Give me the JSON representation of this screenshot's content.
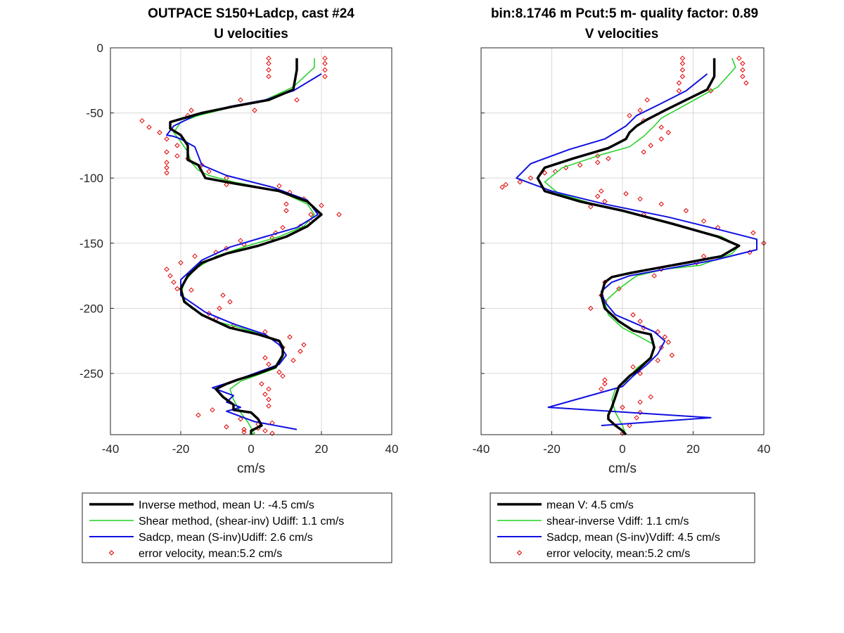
{
  "chart_data": [
    {
      "type": "line",
      "title_line1": "OUTPACE S150+Ladcp, cast #24",
      "title_line2": "U velocities",
      "xlabel": "cm/s",
      "ylabel": "",
      "xlim": [
        -40,
        40
      ],
      "ylim": [
        -297,
        0
      ],
      "y_reversed": false,
      "xticks": [
        -40,
        -20,
        0,
        20,
        40
      ],
      "yticks": [
        0,
        -50,
        -100,
        -150,
        -200,
        -250
      ],
      "ytick_labels": [
        "0",
        "-50",
        "-100",
        "-150",
        "-200",
        "-250"
      ],
      "xtick_labels": [
        "-40",
        "-20",
        "0",
        "20",
        "40"
      ],
      "grid": true,
      "legend_position": "below",
      "series": [
        {
          "name": "Inverse method, mean U:  -4.5 cm/s",
          "color": "#000000",
          "style": "line-thick",
          "x": [
            13,
            13,
            12,
            5,
            -5,
            -14,
            -23,
            -23,
            -20,
            -18,
            -18,
            -15,
            -14,
            -13,
            -5,
            8,
            16,
            20,
            16,
            10,
            2,
            -7,
            -14,
            -18,
            -20,
            -19,
            -14,
            -6,
            2,
            8,
            9,
            9,
            7,
            2,
            -4,
            -7,
            -10,
            -8,
            -5,
            -5,
            0,
            2,
            3,
            0,
            0
          ],
          "y": [
            -8,
            -17,
            -32,
            -40,
            -45,
            -50,
            -57,
            -62,
            -67,
            -75,
            -86,
            -90,
            -95,
            -100,
            -104,
            -110,
            -118,
            -128,
            -137,
            -145,
            -152,
            -158,
            -165,
            -175,
            -185,
            -195,
            -205,
            -215,
            -220,
            -225,
            -230,
            -236,
            -245,
            -250,
            -255,
            -258,
            -262,
            -268,
            -274,
            -278,
            -280,
            -285,
            -290,
            -294,
            -297
          ],
          "value_labels": []
        },
        {
          "name": "Shear method, (shear-inv)  Udiff:  1.1 cm/s",
          "color": "#20d020",
          "style": "line",
          "x": [
            18,
            18,
            12,
            4,
            -6,
            -15,
            -20,
            -22,
            -20,
            -18,
            -17,
            -15,
            -12,
            -5,
            8,
            16,
            18,
            15,
            8,
            -1,
            -10,
            -16,
            -19,
            -20,
            -17,
            -10,
            -3,
            5,
            9,
            9,
            7,
            1,
            -3,
            -6,
            -5,
            -3,
            -1,
            0,
            1,
            0
          ],
          "y": [
            -8,
            -15,
            -30,
            -40,
            -46,
            -52,
            -57,
            -65,
            -72,
            -80,
            -88,
            -94,
            -98,
            -103,
            -110,
            -120,
            -128,
            -137,
            -145,
            -152,
            -160,
            -170,
            -180,
            -190,
            -200,
            -210,
            -215,
            -222,
            -230,
            -238,
            -246,
            -252,
            -256,
            -262,
            -270,
            -280,
            -287,
            -292,
            -296,
            -297
          ],
          "value_labels": []
        },
        {
          "name": "Sadcp, mean (S-inv)Udiff: 2.6 cm/s",
          "color": "#1010e0",
          "style": "line",
          "x": [
            20,
            12,
            4,
            -6,
            -16,
            -22,
            -24,
            -22,
            -20,
            -16,
            -15,
            -14,
            -7,
            6,
            16,
            19,
            13,
            4,
            -6,
            -14,
            -20,
            -20,
            -13,
            -5,
            4,
            8,
            10,
            8,
            2,
            -4,
            -11,
            -5,
            -7,
            -3,
            -7,
            1,
            13
          ],
          "y": [
            -20,
            -33,
            -40,
            -45,
            -52,
            -60,
            -67,
            -68,
            -70,
            -76,
            -83,
            -90,
            -98,
            -107,
            -117,
            -128,
            -138,
            -145,
            -153,
            -163,
            -178,
            -190,
            -203,
            -212,
            -220,
            -228,
            -236,
            -243,
            -249,
            -255,
            -261,
            -267,
            -272,
            -276,
            -279,
            -287,
            -293
          ],
          "value_labels": []
        },
        {
          "name": "error velocity, mean:5.2 cm/s",
          "color": "#e00000",
          "style": "marker-diamond",
          "x": [
            5,
            21,
            5,
            21,
            5,
            21,
            5,
            21,
            13,
            -3,
            1,
            -17,
            -18,
            -31,
            -29,
            -26,
            -24,
            -21,
            -24,
            -21,
            -18,
            -24,
            -14,
            -24,
            -12,
            -24,
            -7,
            -7,
            8,
            11,
            15,
            10,
            20,
            10,
            17,
            25,
            17,
            14,
            9,
            7,
            6,
            -3,
            -2,
            -7,
            -10,
            -16,
            -20,
            -24,
            -23,
            -22,
            -21,
            -17,
            -8,
            -6,
            -9,
            -12,
            -10,
            -5,
            4,
            11,
            15,
            9,
            14,
            4,
            12,
            5,
            8,
            9,
            3,
            5,
            4,
            5,
            5,
            -11,
            -15,
            -3,
            6,
            2,
            -7,
            2,
            -2,
            4,
            -2,
            6
          ],
          "y": [
            -8,
            -8,
            -12,
            -12,
            -17,
            -17,
            -22,
            -22,
            -40,
            -40,
            -48,
            -48,
            -52,
            -56,
            -61,
            -65,
            -70,
            -75,
            -80,
            -83,
            -85,
            -88,
            -90,
            -92,
            -95,
            -96,
            -100,
            -105,
            -106,
            -111,
            -116,
            -120,
            -121,
            -125,
            -128,
            -128,
            -133,
            -137,
            -138,
            -142,
            -146,
            -148,
            -151,
            -154,
            -157,
            -160,
            -165,
            -170,
            -175,
            -180,
            -185,
            -186,
            -190,
            -195,
            -200,
            -204,
            -208,
            -213,
            -218,
            -222,
            -228,
            -230,
            -233,
            -238,
            -240,
            -243,
            -249,
            -252,
            -258,
            -262,
            -266,
            -270,
            -275,
            -278,
            -282,
            -285,
            -288,
            -289,
            -291,
            -292,
            -293,
            -294,
            -295,
            -296
          ],
          "value_labels": []
        }
      ]
    },
    {
      "type": "line",
      "title_line1": "bin:8.1746 m  Pcut:5 m- quality factor:  0.89",
      "title_line2": "V velocities",
      "xlabel": "cm/s",
      "ylabel": "",
      "xlim": [
        -40,
        40
      ],
      "ylim": [
        -297,
        0
      ],
      "xticks": [
        -40,
        -20,
        0,
        20,
        40
      ],
      "xtick_labels": [
        "-40",
        "-20",
        "0",
        "20",
        "40"
      ],
      "yticks": [
        0,
        -50,
        -100,
        -150,
        -200,
        -250
      ],
      "ytick_labels": [],
      "grid": true,
      "legend_position": "below",
      "series": [
        {
          "name": "mean V:  4.5 cm/s",
          "color": "#000000",
          "style": "line-thick",
          "x": [
            26,
            26,
            24,
            18,
            12,
            7,
            4,
            2,
            1,
            -4,
            -14,
            -22,
            -24,
            -22,
            -12,
            0,
            14,
            27,
            33,
            28,
            18,
            8,
            2,
            -3,
            -5,
            -6,
            -5,
            -1,
            3,
            8,
            9,
            8,
            4,
            2,
            -1,
            -2,
            -3,
            -4,
            -4,
            -2,
            0,
            1
          ],
          "y": [
            -8,
            -22,
            -32,
            -40,
            -48,
            -55,
            -60,
            -65,
            -70,
            -77,
            -85,
            -92,
            -100,
            -110,
            -118,
            -125,
            -135,
            -145,
            -152,
            -160,
            -165,
            -170,
            -173,
            -176,
            -180,
            -190,
            -200,
            -210,
            -217,
            -220,
            -230,
            -238,
            -248,
            -252,
            -260,
            -268,
            -276,
            -282,
            -285,
            -290,
            -294,
            -297
          ],
          "value_labels": []
        },
        {
          "name": "shear-inverse Vdiff:  1.1 cm/s",
          "color": "#20d020",
          "style": "line",
          "x": [
            31,
            32,
            27,
            19,
            11,
            9,
            6,
            2,
            -6,
            -17,
            -22,
            -18,
            -8,
            4,
            18,
            28,
            33,
            31,
            22,
            12,
            4,
            -1,
            -5,
            -4,
            0,
            5,
            9,
            8,
            4,
            1,
            -2,
            -3,
            -2,
            0,
            1
          ],
          "y": [
            -8,
            -15,
            -30,
            -42,
            -54,
            -60,
            -68,
            -76,
            -82,
            -92,
            -103,
            -112,
            -120,
            -128,
            -138,
            -145,
            -152,
            -158,
            -167,
            -170,
            -175,
            -185,
            -195,
            -205,
            -215,
            -222,
            -228,
            -238,
            -246,
            -256,
            -262,
            -270,
            -280,
            -290,
            -297
          ],
          "value_labels": []
        },
        {
          "name": "Sadcp, mean (S-inv)Vdiff: 4.5 cm/s",
          "color": "#1010e0",
          "style": "line",
          "x": [
            24,
            18,
            10,
            4,
            1,
            -5,
            -15,
            -26,
            -30,
            -20,
            -5,
            13,
            28,
            38,
            38,
            26,
            12,
            2,
            -3,
            -6,
            -5,
            -2,
            4,
            9,
            12,
            10,
            7,
            3,
            0,
            -21,
            25,
            -6
          ],
          "y": [
            -20,
            -33,
            -44,
            -52,
            -60,
            -70,
            -78,
            -89,
            -100,
            -110,
            -120,
            -130,
            -140,
            -147,
            -155,
            -163,
            -170,
            -175,
            -180,
            -187,
            -195,
            -205,
            -212,
            -218,
            -225,
            -235,
            -243,
            -252,
            -260,
            -276,
            -284,
            -290
          ],
          "value_labels": []
        },
        {
          "name": "error velocity, mean:5.2 cm/s",
          "color": "#e00000",
          "style": "marker-diamond",
          "x": [
            17,
            33,
            17,
            34,
            17,
            34,
            17,
            34,
            16,
            35,
            16,
            25,
            7,
            5,
            2,
            6,
            11,
            13,
            11,
            8,
            6,
            -7,
            -4,
            -7,
            -12,
            -16,
            -19,
            -22,
            -26,
            -29,
            -33,
            -34,
            -6,
            1,
            -7,
            5,
            -5,
            11,
            -9,
            18,
            6,
            23,
            27,
            37,
            40,
            36,
            23,
            21,
            11,
            9,
            -5,
            -1,
            -6,
            -5,
            -9,
            3,
            5,
            6,
            10,
            12,
            13,
            11,
            14,
            10,
            3,
            5,
            -5,
            -5,
            -6,
            8,
            5,
            0,
            5,
            4,
            2,
            0
          ],
          "y": [
            -8,
            -8,
            -12,
            -12,
            -17,
            -17,
            -22,
            -22,
            -27,
            -27,
            -33,
            -33,
            -40,
            -48,
            -52,
            -56,
            -61,
            -65,
            -70,
            -75,
            -80,
            -83,
            -85,
            -88,
            -90,
            -92,
            -95,
            -96,
            -100,
            -103,
            -105,
            -107,
            -110,
            -112,
            -114,
            -116,
            -118,
            -120,
            -122,
            -125,
            -128,
            -133,
            -138,
            -142,
            -150,
            -157,
            -160,
            -165,
            -170,
            -175,
            -180,
            -185,
            -190,
            -195,
            -200,
            -205,
            -210,
            -215,
            -218,
            -222,
            -226,
            -230,
            -236,
            -240,
            -245,
            -250,
            -255,
            -258,
            -262,
            -268,
            -272,
            -276,
            -280,
            -284,
            -290,
            -296
          ],
          "value_labels": []
        }
      ]
    }
  ]
}
